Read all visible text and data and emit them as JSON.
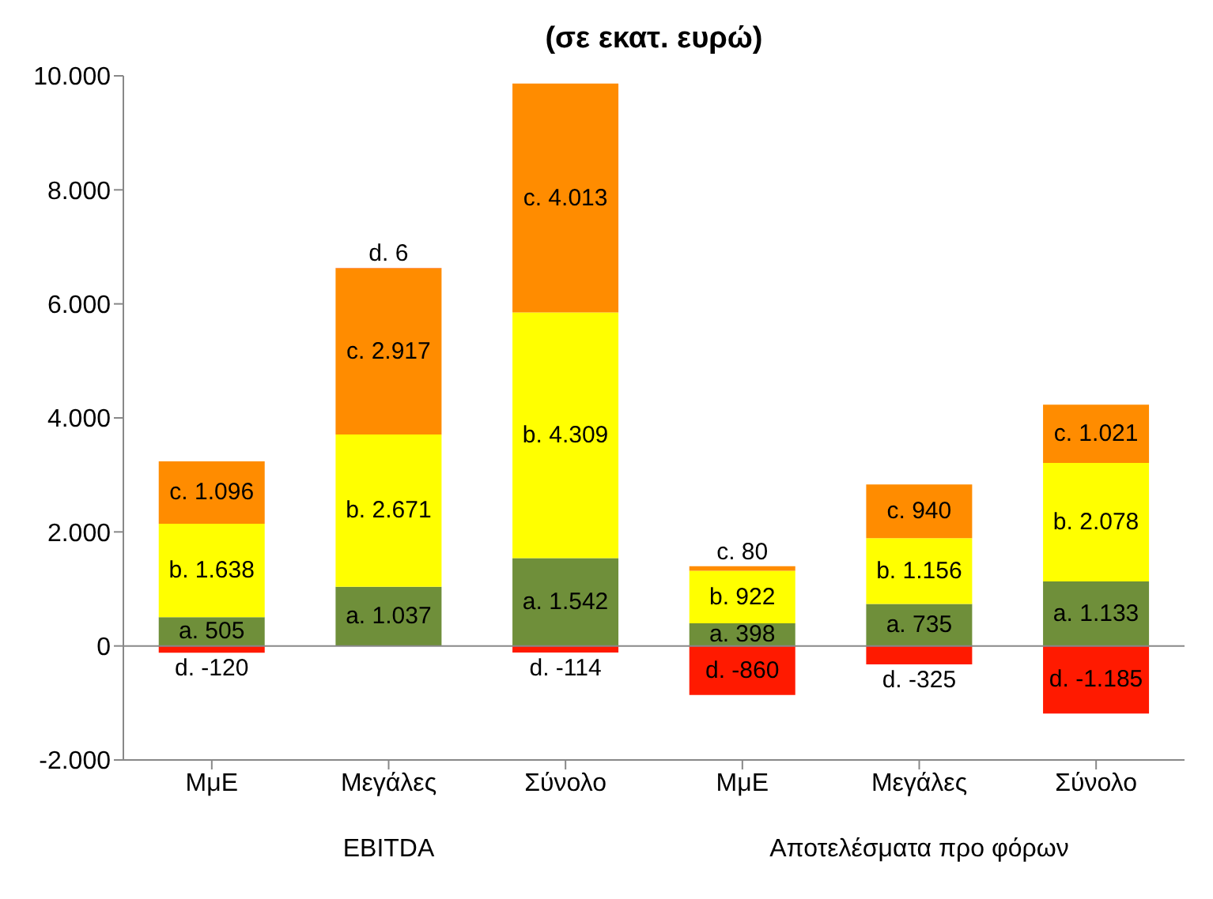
{
  "chart_data": {
    "type": "bar",
    "title": "(σε εκατ. ευρώ)",
    "stacked": true,
    "categories": [
      "ΜμΕ",
      "Μεγάλες",
      "Σύνολο",
      "ΜμΕ",
      "Μεγάλες",
      "Σύνολο"
    ],
    "series": [
      {
        "color": "#6f8f3a",
        "values": [
          505,
          1037,
          1542,
          398,
          735,
          1133
        ],
        "value_labels": [
          "a. 505",
          "a. 1.037",
          "a. 1.542",
          "a. 398",
          "a. 735",
          "a. 1.133"
        ]
      },
      {
        "color": "#ffff00",
        "values": [
          1638,
          2671,
          4309,
          922,
          1156,
          2078
        ],
        "value_labels": [
          "b. 1.638",
          "b. 2.671",
          "b. 4.309",
          "b. 922",
          "b. 1.156",
          "b. 2.078"
        ]
      },
      {
        "color": "#ff8c00",
        "values": [
          1096,
          2917,
          4013,
          80,
          940,
          1021
        ],
        "value_labels": [
          "c. 1.096",
          "c. 2.917",
          "c. 4.013",
          "c. 80",
          "c. 940",
          "c. 1.021"
        ]
      },
      {
        "color": "#ff1a00",
        "values": [
          -120,
          6,
          -114,
          -860,
          -325,
          -1185
        ],
        "value_labels": [
          "d. -120",
          "d. 6",
          "d. -114",
          "d. -860",
          "d. -325",
          "d. -1.185"
        ]
      }
    ],
    "ylim": [
      -2000,
      10000
    ],
    "yticks": [
      {
        "value": -2000,
        "label": "-2.000"
      },
      {
        "value": 0,
        "label": "0"
      },
      {
        "value": 2000,
        "label": "2.000"
      },
      {
        "value": 4000,
        "label": "4.000"
      },
      {
        "value": 6000,
        "label": "6.000"
      },
      {
        "value": 8000,
        "label": "8.000"
      },
      {
        "value": 10000,
        "label": "10.000"
      }
    ],
    "ref_lines": [
      {
        "axis": "y",
        "value": 0
      }
    ],
    "annotations": [
      "EBITDA",
      "Αποτελέσματα προ φόρων"
    ]
  }
}
